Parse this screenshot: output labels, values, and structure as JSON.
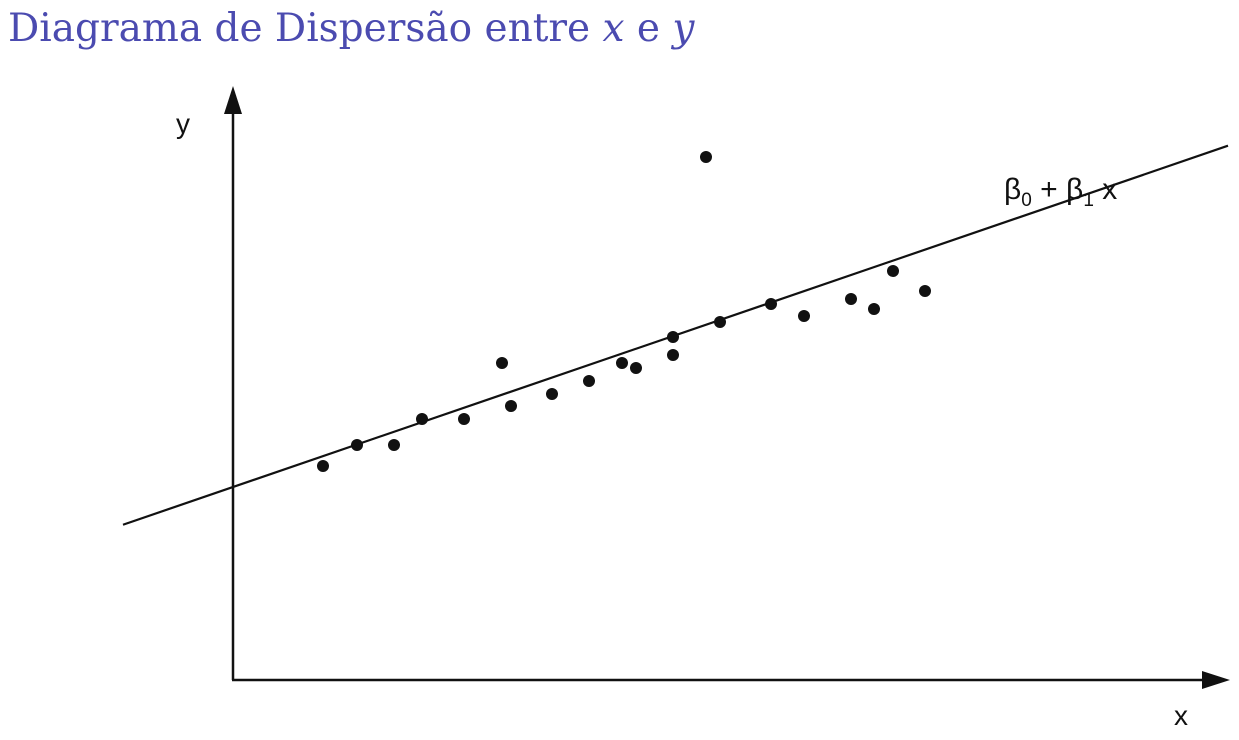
{
  "title": {
    "text": "Diagrama de Dispersão entre ",
    "var_x": "x",
    "conj": " e ",
    "var_y": "y"
  },
  "axes": {
    "x_label": "x",
    "y_label": "y"
  },
  "line_label": {
    "beta": "β",
    "sub0": "0",
    "plus": " + ",
    "sub1": "1",
    "var": " x"
  },
  "colors": {
    "title": "#4b4bb0",
    "ink": "#111111"
  },
  "chart_data": {
    "type": "scatter",
    "points": [
      {
        "x": 90,
        "y": 214
      },
      {
        "x": 124,
        "y": 235
      },
      {
        "x": 161,
        "y": 235
      },
      {
        "x": 189,
        "y": 261
      },
      {
        "x": 231,
        "y": 261
      },
      {
        "x": 269,
        "y": 317
      },
      {
        "x": 278,
        "y": 274
      },
      {
        "x": 319,
        "y": 286
      },
      {
        "x": 356,
        "y": 299
      },
      {
        "x": 389,
        "y": 317
      },
      {
        "x": 403,
        "y": 312
      },
      {
        "x": 440,
        "y": 325
      },
      {
        "x": 440,
        "y": 343
      },
      {
        "x": 473,
        "y": 523
      },
      {
        "x": 487,
        "y": 358
      },
      {
        "x": 538,
        "y": 376
      },
      {
        "x": 571,
        "y": 364
      },
      {
        "x": 618,
        "y": 381
      },
      {
        "x": 641,
        "y": 371
      },
      {
        "x": 660,
        "y": 409
      },
      {
        "x": 692,
        "y": 389
      }
    ],
    "regression_line": {
      "intercept": 193,
      "slope": 0.343
    },
    "x_range": [
      -110,
      995
    ],
    "y_range": [
      0,
      590
    ]
  }
}
